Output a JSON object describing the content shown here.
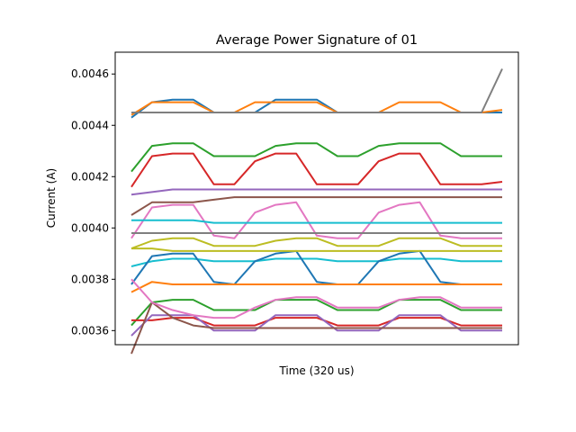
{
  "chart_data": {
    "type": "line",
    "title": "Average Power Signature of 01",
    "xlabel": "Time (320 us)",
    "ylabel": "Current (A)",
    "xticks_shown": false,
    "xlim": [
      0,
      100
    ],
    "ylim": [
      0.003545,
      0.004685
    ],
    "yticks": [
      0.0036,
      0.0038,
      0.004,
      0.0042,
      0.0044,
      0.0046
    ],
    "ytick_labels": [
      "0.0036",
      "0.0038",
      "0.0040",
      "0.0042",
      "0.0044",
      "0.0046"
    ],
    "grid": false,
    "legend": "none",
    "series_note": "many overlapping traces in matplotlib default color cycle",
    "colors": [
      "#1f77b4",
      "#ff7f0e",
      "#2ca02c",
      "#d62728",
      "#9467bd",
      "#8c564b",
      "#e377c2",
      "#7f7f7f",
      "#bcbd22",
      "#17becf"
    ],
    "series": [
      {
        "values": [
          0.00443,
          0.00449,
          0.0045,
          0.0045,
          0.00445,
          0.00445,
          0.00445,
          0.0045,
          0.0045,
          0.0045,
          0.00445,
          0.00445,
          0.00445,
          0.00445,
          0.00445,
          0.00445,
          0.00445,
          0.00445,
          0.00445
        ]
      },
      {
        "values": [
          0.00444,
          0.00449,
          0.00449,
          0.00449,
          0.00445,
          0.00445,
          0.00449,
          0.00449,
          0.00449,
          0.00449,
          0.00445,
          0.00445,
          0.00445,
          0.00449,
          0.00449,
          0.00449,
          0.00445,
          0.00445,
          0.00446
        ]
      },
      {
        "values": [
          0.00422,
          0.00432,
          0.00433,
          0.00433,
          0.00428,
          0.00428,
          0.00428,
          0.00432,
          0.00433,
          0.00433,
          0.00428,
          0.00428,
          0.00432,
          0.00433,
          0.00433,
          0.00433,
          0.00428,
          0.00428,
          0.00428
        ]
      },
      {
        "values": [
          0.00416,
          0.00428,
          0.00429,
          0.00429,
          0.00417,
          0.00417,
          0.00426,
          0.00429,
          0.00429,
          0.00417,
          0.00417,
          0.00417,
          0.00426,
          0.00429,
          0.00429,
          0.00417,
          0.00417,
          0.00417,
          0.00418
        ]
      },
      {
        "values": [
          0.00413,
          0.00414,
          0.00415,
          0.00415,
          0.00415,
          0.00415,
          0.00415,
          0.00415,
          0.00415,
          0.00415,
          0.00415,
          0.00415,
          0.00415,
          0.00415,
          0.00415,
          0.00415,
          0.00415,
          0.00415,
          0.00415
        ]
      },
      {
        "values": [
          0.00405,
          0.0041,
          0.0041,
          0.0041,
          0.00411,
          0.00412,
          0.00412,
          0.00412,
          0.00412,
          0.00412,
          0.00412,
          0.00412,
          0.00412,
          0.00412,
          0.00412,
          0.00412,
          0.00412,
          0.00412,
          0.00412
        ]
      },
      {
        "values": [
          0.00396,
          0.00408,
          0.00409,
          0.00409,
          0.00397,
          0.00396,
          0.00406,
          0.00409,
          0.0041,
          0.00397,
          0.00396,
          0.00396,
          0.00406,
          0.00409,
          0.0041,
          0.00397,
          0.00396,
          0.00396,
          0.00396
        ]
      },
      {
        "values": [
          0.00398,
          0.00398,
          0.00398,
          0.00398,
          0.00398,
          0.00398,
          0.00398,
          0.00398,
          0.00398,
          0.00398,
          0.00398,
          0.00398,
          0.00398,
          0.00398,
          0.00398,
          0.00398,
          0.00398,
          0.00398,
          0.00398
        ]
      },
      {
        "values": [
          0.00392,
          0.00395,
          0.00396,
          0.00396,
          0.00393,
          0.00393,
          0.00393,
          0.00395,
          0.00396,
          0.00396,
          0.00393,
          0.00393,
          0.00393,
          0.00396,
          0.00396,
          0.00396,
          0.00393,
          0.00393,
          0.00393
        ]
      },
      {
        "values": [
          0.00385,
          0.00387,
          0.00388,
          0.00388,
          0.00387,
          0.00387,
          0.00387,
          0.00388,
          0.00388,
          0.00388,
          0.00387,
          0.00387,
          0.00387,
          0.00388,
          0.00388,
          0.00388,
          0.00387,
          0.00387,
          0.00387
        ]
      },
      {
        "values": [
          0.00378,
          0.00389,
          0.0039,
          0.0039,
          0.00379,
          0.00378,
          0.00387,
          0.0039,
          0.00391,
          0.00379,
          0.00378,
          0.00378,
          0.00387,
          0.0039,
          0.00391,
          0.00379,
          0.00378,
          0.00378,
          0.00378
        ]
      },
      {
        "values": [
          0.00375,
          0.00379,
          0.00378,
          0.00378,
          0.00378,
          0.00378,
          0.00378,
          0.00378,
          0.00378,
          0.00378,
          0.00378,
          0.00378,
          0.00378,
          0.00378,
          0.00378,
          0.00378,
          0.00378,
          0.00378,
          0.00378
        ]
      },
      {
        "values": [
          0.00362,
          0.00371,
          0.00372,
          0.00372,
          0.00368,
          0.00368,
          0.00368,
          0.00372,
          0.00372,
          0.00372,
          0.00368,
          0.00368,
          0.00368,
          0.00372,
          0.00372,
          0.00372,
          0.00368,
          0.00368,
          0.00368
        ]
      },
      {
        "values": [
          0.00364,
          0.00364,
          0.00365,
          0.00365,
          0.00362,
          0.00362,
          0.00362,
          0.00365,
          0.00365,
          0.00365,
          0.00362,
          0.00362,
          0.00362,
          0.00365,
          0.00365,
          0.00365,
          0.00362,
          0.00362,
          0.00362
        ]
      },
      {
        "values": [
          0.00358,
          0.00366,
          0.00366,
          0.00366,
          0.0036,
          0.0036,
          0.0036,
          0.00366,
          0.00366,
          0.00366,
          0.0036,
          0.0036,
          0.0036,
          0.00366,
          0.00366,
          0.00366,
          0.0036,
          0.0036,
          0.0036
        ]
      },
      {
        "values": [
          0.00351,
          0.00371,
          0.00365,
          0.00362,
          0.00361,
          0.00361,
          0.00361,
          0.00361,
          0.00361,
          0.00361,
          0.00361,
          0.00361,
          0.00361,
          0.00361,
          0.00361,
          0.00361,
          0.00361,
          0.00361,
          0.00361
        ]
      },
      {
        "values": [
          0.0038,
          0.00371,
          0.00368,
          0.00366,
          0.00365,
          0.00365,
          0.00369,
          0.00372,
          0.00373,
          0.00373,
          0.00369,
          0.00369,
          0.00369,
          0.00372,
          0.00373,
          0.00373,
          0.00369,
          0.00369,
          0.00369
        ]
      },
      {
        "values": [
          0.00445,
          0.00445,
          0.00445,
          0.00445,
          0.00445,
          0.00445,
          0.00445,
          0.00445,
          0.00445,
          0.00445,
          0.00445,
          0.00445,
          0.00445,
          0.00445,
          0.00445,
          0.00445,
          0.00445,
          0.00445,
          0.00462
        ]
      },
      {
        "values": [
          0.00392,
          0.00392,
          0.00391,
          0.00391,
          0.00391,
          0.00391,
          0.00391,
          0.00391,
          0.00391,
          0.00391,
          0.00391,
          0.00391,
          0.00391,
          0.00391,
          0.00391,
          0.00391,
          0.00391,
          0.00391,
          0.00391
        ]
      },
      {
        "values": [
          0.00403,
          0.00403,
          0.00403,
          0.00403,
          0.00402,
          0.00402,
          0.00402,
          0.00402,
          0.00402,
          0.00402,
          0.00402,
          0.00402,
          0.00402,
          0.00402,
          0.00402,
          0.00402,
          0.00402,
          0.00402,
          0.00402
        ]
      }
    ]
  }
}
